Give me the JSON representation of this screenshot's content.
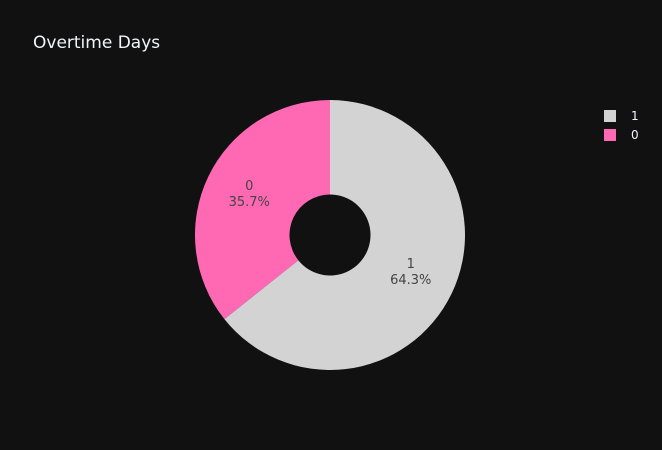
{
  "chart_data": {
    "type": "pie",
    "title": "Overtime Days",
    "hole": 0.3,
    "slices": [
      {
        "label": "1",
        "value": 64.3,
        "percent_text": "64.3%",
        "color": "#d3d3d3"
      },
      {
        "label": "0",
        "value": 35.7,
        "percent_text": "35.7%",
        "color": "#ff69b4"
      }
    ],
    "legend": {
      "items": [
        {
          "label": "1",
          "color": "#d3d3d3"
        },
        {
          "label": "0",
          "color": "#ff69b4"
        }
      ]
    },
    "background": "#111111"
  }
}
